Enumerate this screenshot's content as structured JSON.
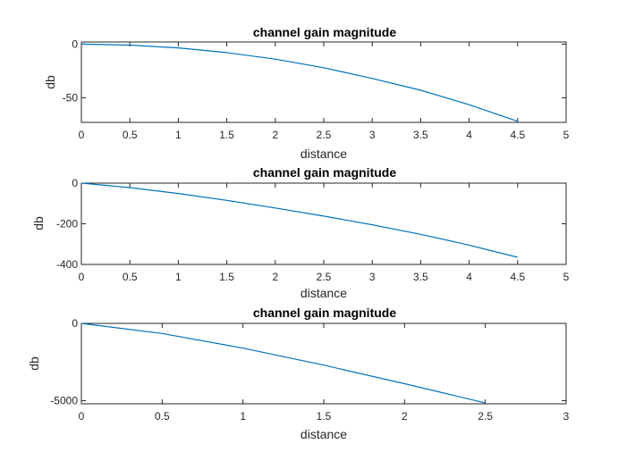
{
  "chart_data": [
    {
      "type": "line",
      "title": "channel gain magnitude",
      "xlabel": "distance",
      "ylabel": "db",
      "xlim": [
        0,
        5
      ],
      "ylim": [
        -73,
        2
      ],
      "xticks": [
        0,
        0.5,
        1,
        1.5,
        2,
        2.5,
        3,
        3.5,
        4,
        4.5,
        5
      ],
      "xtick_labels": [
        "0",
        "0.5",
        "1",
        "1.5",
        "2",
        "2.5",
        "3",
        "3.5",
        "4",
        "4.5",
        "5"
      ],
      "yticks": [
        0,
        -50
      ],
      "ytick_labels": [
        "0",
        "-50"
      ],
      "grid": false,
      "color": "#0072bd",
      "x": [
        0,
        0.5,
        1,
        1.5,
        2,
        2.5,
        3,
        3.5,
        4,
        4.5
      ],
      "y": [
        0,
        -0.9,
        -3.5,
        -7.9,
        -14,
        -22,
        -32,
        -43,
        -56.5,
        -72
      ]
    },
    {
      "type": "line",
      "title": "channel gain magnitude",
      "xlabel": "distance",
      "ylabel": "db",
      "xlim": [
        0,
        5
      ],
      "ylim": [
        -400,
        0
      ],
      "xticks": [
        0,
        0.5,
        1,
        1.5,
        2,
        2.5,
        3,
        3.5,
        4,
        4.5,
        5
      ],
      "xtick_labels": [
        "0",
        "0.5",
        "1",
        "1.5",
        "2",
        "2.5",
        "3",
        "3.5",
        "4",
        "4.5",
        "5"
      ],
      "yticks": [
        0,
        -200,
        -400
      ],
      "ytick_labels": [
        "0",
        "-200",
        "-400"
      ],
      "grid": false,
      "color": "#0072bd",
      "x": [
        0,
        0.5,
        1,
        1.5,
        2,
        2.5,
        3,
        3.5,
        4,
        4.5
      ],
      "y": [
        0,
        -22,
        -51,
        -85,
        -122,
        -162,
        -205,
        -252,
        -305,
        -365
      ]
    },
    {
      "type": "line",
      "title": "channel gain magnitude",
      "xlabel": "distance",
      "ylabel": "db",
      "xlim": [
        0,
        3
      ],
      "ylim": [
        -5200,
        0
      ],
      "xticks": [
        0,
        0.5,
        1,
        1.5,
        2,
        2.5,
        3
      ],
      "xtick_labels": [
        "0",
        "0.5",
        "1",
        "1.5",
        "2",
        "2.5",
        "3"
      ],
      "yticks": [
        0,
        -5000
      ],
      "ytick_labels": [
        "0",
        "-5000"
      ],
      "grid": false,
      "color": "#0072bd",
      "x": [
        0,
        0.5,
        1,
        1.5,
        2,
        2.5
      ],
      "y": [
        0,
        -650,
        -1600,
        -2700,
        -3900,
        -5150
      ]
    }
  ]
}
